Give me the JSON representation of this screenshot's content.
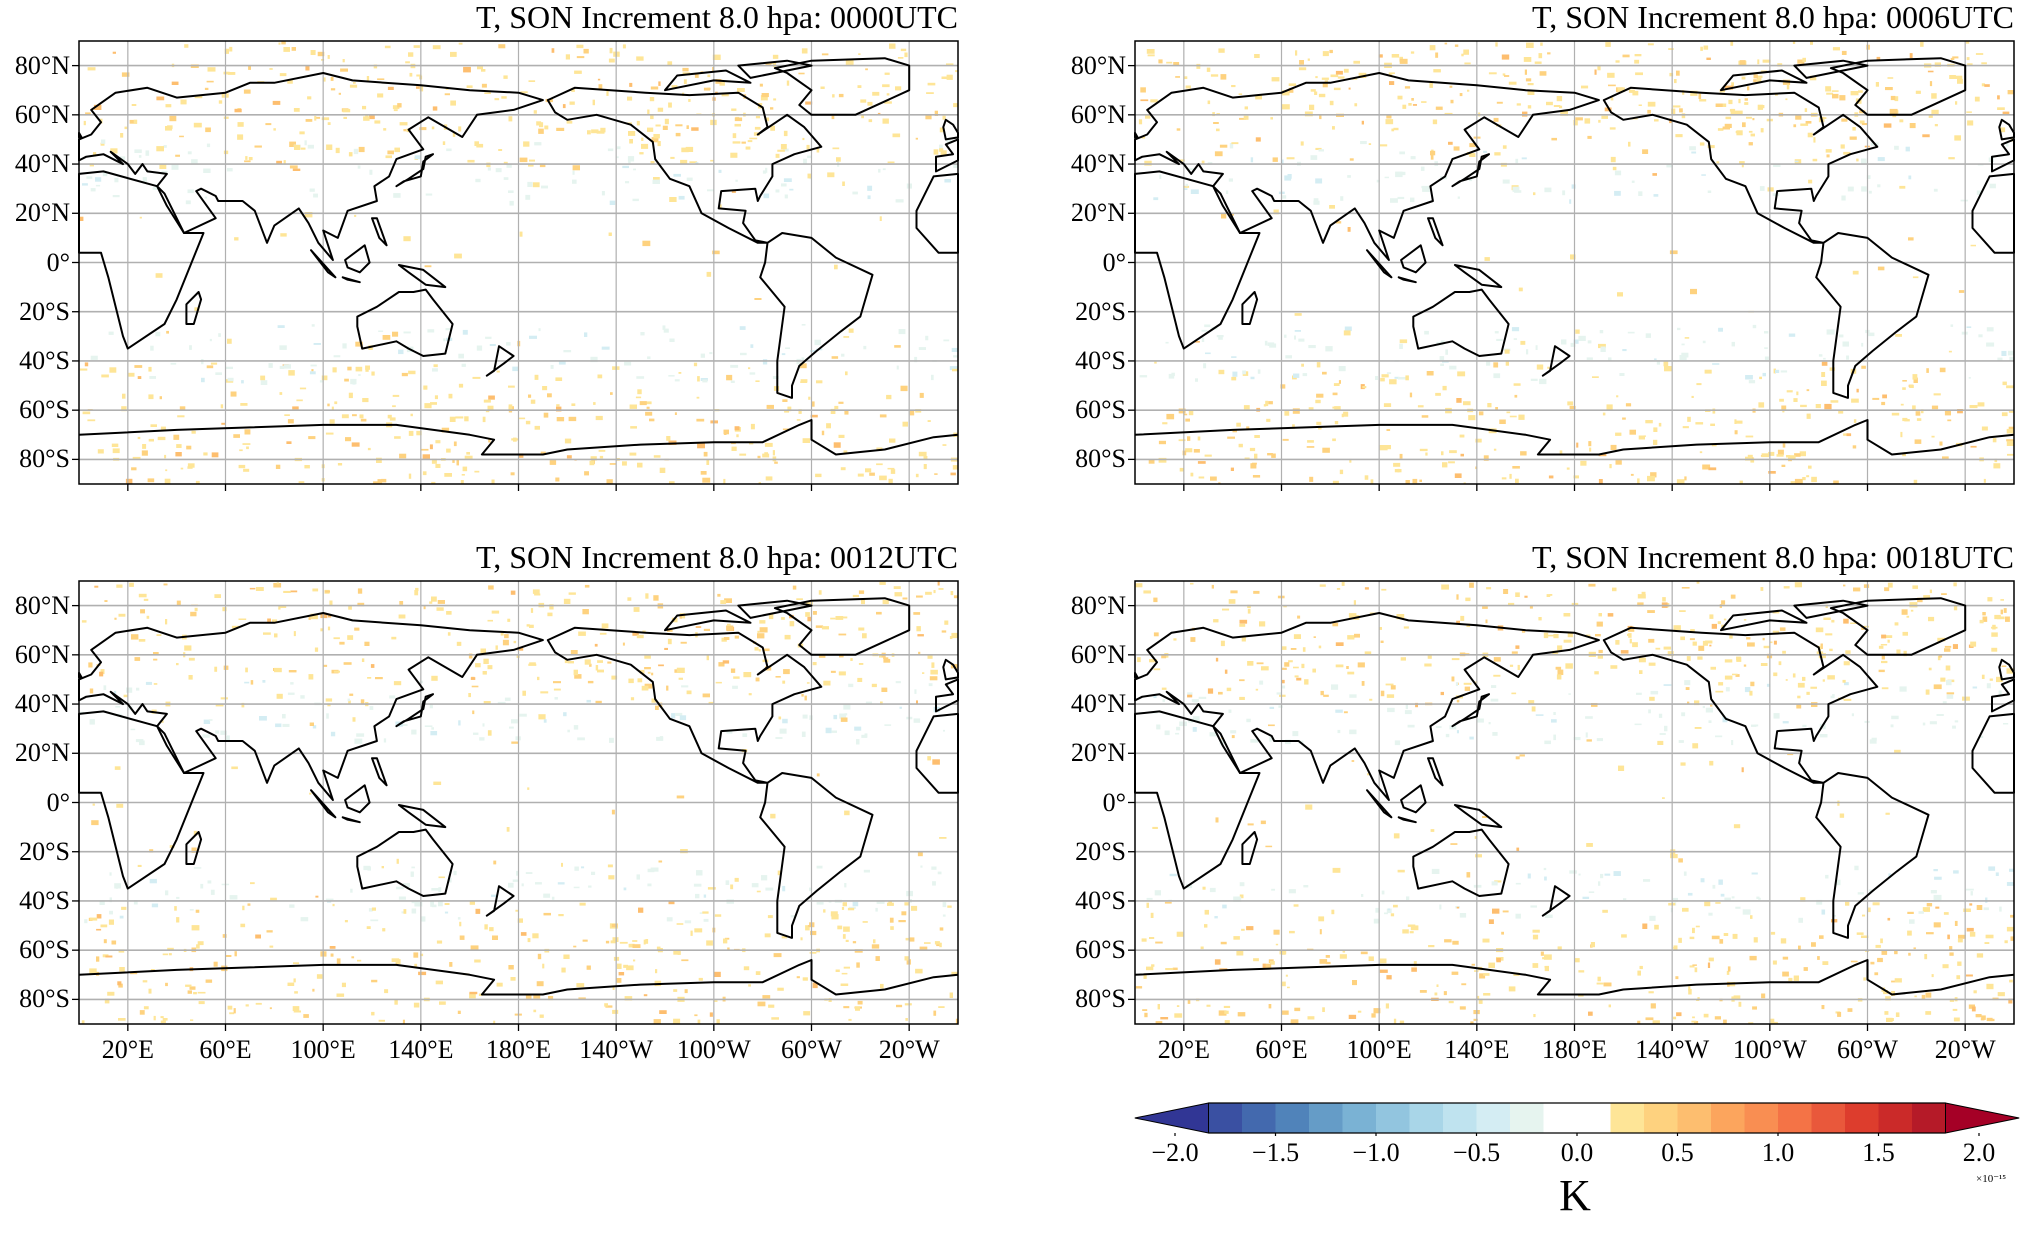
{
  "chart_data": {
    "type": "heatmap",
    "projection": "equirectangular",
    "lon_range": [
      0,
      360
    ],
    "lat_range": [
      -90,
      90
    ],
    "grid": true,
    "panels": [
      {
        "title": "T, SON Increment 8.0 hpa:  0000UTC",
        "show_lon_labels": false
      },
      {
        "title": "T, SON Increment 8.0 hpa:  0006UTC",
        "show_lon_labels": false
      },
      {
        "title": "T, SON Increment 8.0 hpa:  0012UTC",
        "show_lon_labels": true
      },
      {
        "title": "T, SON Increment 8.0 hpa:  0018UTC",
        "show_lon_labels": true
      }
    ],
    "lat_ticks": [
      {
        "value": 80,
        "label": "80°N"
      },
      {
        "value": 60,
        "label": "60°N"
      },
      {
        "value": 40,
        "label": "40°N"
      },
      {
        "value": 20,
        "label": "20°N"
      },
      {
        "value": 0,
        "label": "0°"
      },
      {
        "value": -20,
        "label": "20°S"
      },
      {
        "value": -40,
        "label": "40°S"
      },
      {
        "value": -60,
        "label": "60°S"
      },
      {
        "value": -80,
        "label": "80°S"
      }
    ],
    "lon_ticks": [
      {
        "value": 20,
        "label": "20°E"
      },
      {
        "value": 60,
        "label": "60°E"
      },
      {
        "value": 100,
        "label": "100°E"
      },
      {
        "value": 140,
        "label": "140°E"
      },
      {
        "value": 180,
        "label": "180°E"
      },
      {
        "value": 220,
        "label": "140°W"
      },
      {
        "value": 260,
        "label": "100°W"
      },
      {
        "value": 300,
        "label": "60°W"
      },
      {
        "value": 340,
        "label": "20°W"
      }
    ],
    "colorbar": {
      "label": "K",
      "multiplier": "×10⁻¹⁵",
      "range": [
        -2.0,
        2.0
      ],
      "extend": "both",
      "ticks": [
        {
          "value": -2.0,
          "label": "−2.0"
        },
        {
          "value": -1.5,
          "label": "−1.5"
        },
        {
          "value": -1.0,
          "label": "−1.0"
        },
        {
          "value": -0.5,
          "label": "−0.5"
        },
        {
          "value": 0.0,
          "label": "0.0"
        },
        {
          "value": 0.5,
          "label": "0.5"
        },
        {
          "value": 1.0,
          "label": "1.0"
        },
        {
          "value": 1.5,
          "label": "1.5"
        },
        {
          "value": 2.0,
          "label": "2.0"
        }
      ],
      "colors": [
        "#313695",
        "#3a50a2",
        "#4369ae",
        "#5083ba",
        "#659cc7",
        "#7ab2d4",
        "#92c5df",
        "#a9d6e8",
        "#bfe3ef",
        "#d4edf3",
        "#e6f4ef",
        "#ffffff",
        "#ffffff",
        "#fee597",
        "#fed27f",
        "#fdbe6f",
        "#fca55d",
        "#f98e52",
        "#f47346",
        "#e9583b",
        "#dd3d2d",
        "#cb2a29",
        "#b51a28",
        "#a50026"
      ]
    }
  }
}
